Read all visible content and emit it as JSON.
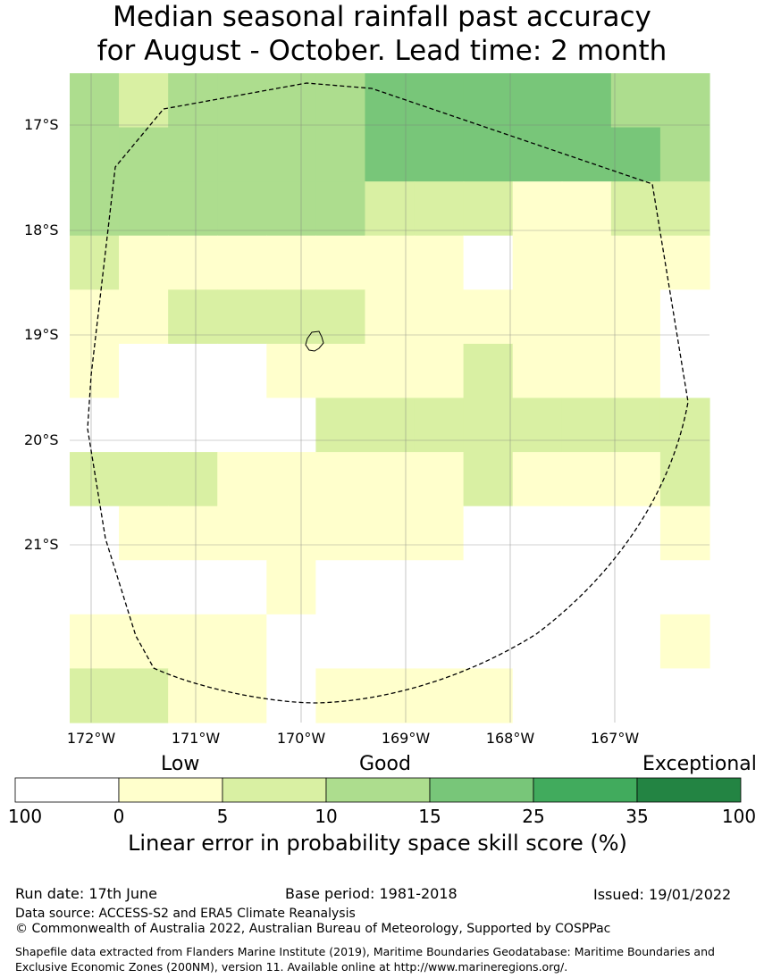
{
  "title": {
    "line1": "Median seasonal rainfall past accuracy",
    "line2": "for August - October. Lead time: 2 month"
  },
  "map": {
    "lat_labels": [
      "17°S",
      "18°S",
      "19°S",
      "20°S",
      "21°S"
    ],
    "lon_labels": [
      "172°W",
      "171°W",
      "170°W",
      "169°W",
      "168°W",
      "167°W"
    ],
    "cells": [
      [
        "c15",
        "c10",
        "c15",
        "c15",
        "c15",
        "c15",
        "c20",
        "c20",
        "c20",
        "c20",
        "c20",
        "c15",
        "c15"
      ],
      [
        "c15",
        "c15",
        "c15",
        "c15",
        "c15",
        "c15",
        "c20",
        "c20",
        "c20",
        "c20",
        "c20",
        "c20",
        "c15"
      ],
      [
        "c15",
        "c15",
        "c15",
        "c15",
        "c15",
        "c15",
        "c10",
        "c10",
        "c10",
        "c5",
        "c5",
        "c10",
        "c10"
      ],
      [
        "c10",
        "c5",
        "c5",
        "c5",
        "c5",
        "c5",
        "c5",
        "c5",
        "c0",
        "c5",
        "c5",
        "c5",
        "c5"
      ],
      [
        "c5",
        "c5",
        "c10",
        "c10",
        "c10",
        "c10",
        "c5",
        "c5",
        "c5",
        "c5",
        "c5",
        "c5",
        "c0"
      ],
      [
        "c5",
        "c0",
        "c0",
        "c0",
        "c5",
        "c5",
        "c5",
        "c5",
        "c10",
        "c5",
        "c5",
        "c5",
        "c0"
      ],
      [
        "c0",
        "c0",
        "c0",
        "c0",
        "c0",
        "c10",
        "c10",
        "c10",
        "c10",
        "c10",
        "c10",
        "c10",
        "c10"
      ],
      [
        "c10",
        "c10",
        "c10",
        "c5",
        "c5",
        "c5",
        "c5",
        "c5",
        "c10",
        "c5",
        "c5",
        "c5",
        "c10"
      ],
      [
        "c0",
        "c5",
        "c5",
        "c5",
        "c5",
        "c5",
        "c5",
        "c5",
        "c0",
        "c0",
        "c0",
        "c0",
        "c5"
      ],
      [
        "c0",
        "c0",
        "c0",
        "c0",
        "c5",
        "c0",
        "c0",
        "c0",
        "c0",
        "c0",
        "c0",
        "c0",
        "c0"
      ],
      [
        "c5",
        "c5",
        "c5",
        "c5",
        "c0",
        "c0",
        "c0",
        "c0",
        "c0",
        "c0",
        "c0",
        "c0",
        "c5"
      ],
      [
        "c10",
        "c10",
        "c5",
        "c5",
        "c0",
        "c5",
        "c5",
        "c5",
        "c5",
        "c0",
        "c0",
        "c0",
        "c0"
      ]
    ]
  },
  "legend": {
    "categories": [
      "Low",
      "Good",
      "Exceptional"
    ],
    "ticks": [
      "100",
      "0",
      "5",
      "10",
      "15",
      "25",
      "35",
      "100"
    ],
    "colors": [
      "#ffffff",
      "#ffffcc",
      "#d9f0a3",
      "#addd8e",
      "#78c679",
      "#41ab5d",
      "#238443"
    ],
    "title": "Linear error in probability space skill score (%)"
  },
  "footer": {
    "run_date": "Run date: 17th June",
    "base_period": "Base period: 1981-2018",
    "issued": "Issued: 19/01/2022",
    "data_source": "Data source: ACCESS-S2 and ERA5 Climate Reanalysis",
    "copyright": "© Commonwealth of Australia 2022, Australian Bureau of Meteorology, Supported by COSPPac",
    "shapefile": "Shapefile data extracted from Flanders Marine Institute (2019), Maritime Boundaries Geodatabase: Maritime Boundaries and Exclusive Economic Zones (200NM), version 11. Available online at http://www.marineregions.org/."
  }
}
